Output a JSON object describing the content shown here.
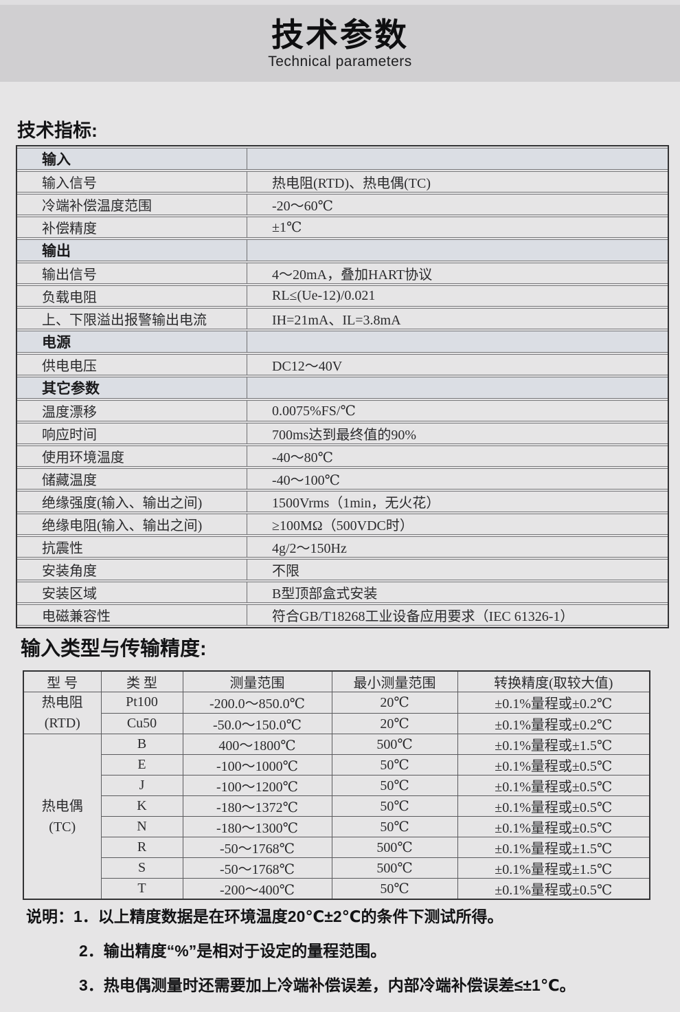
{
  "page": {
    "title": "技术参数",
    "subtitle": "Technical parameters"
  },
  "colors": {
    "page_bg": "#e6e5e6",
    "banner_bg": "#d0cfd1",
    "section_row_bg": "#dbdee4",
    "border_dark": "#323234",
    "border_light": "#77777a",
    "text": "#2b2b2d"
  },
  "tech_specs": {
    "heading": "技术指标:",
    "rows": [
      {
        "kind": "section",
        "label": "输入",
        "value": ""
      },
      {
        "kind": "data",
        "label": "输入信号",
        "value": "热电阻(RTD)、热电偶(TC)"
      },
      {
        "kind": "data",
        "label": "冷端补偿温度范围",
        "value": "-20～60℃"
      },
      {
        "kind": "data",
        "label": "补偿精度",
        "value": "±1℃"
      },
      {
        "kind": "section",
        "label": "输出",
        "value": ""
      },
      {
        "kind": "data",
        "label": "输出信号",
        "value": "4～20mA，叠加HART协议"
      },
      {
        "kind": "data",
        "label": "负载电阻",
        "value": "RL≤(Ue-12)/0.021"
      },
      {
        "kind": "data",
        "label": "上、下限溢出报警输出电流",
        "value": "IH=21mA、IL=3.8mA"
      },
      {
        "kind": "section",
        "label": "电源",
        "value": ""
      },
      {
        "kind": "data",
        "label": "供电电压",
        "value": "DC12～40V"
      },
      {
        "kind": "section",
        "label": "其它参数",
        "value": ""
      },
      {
        "kind": "data",
        "label": "温度漂移",
        "value": "0.0075%FS/℃"
      },
      {
        "kind": "data",
        "label": "响应时间",
        "value": "700ms达到最终值的90%"
      },
      {
        "kind": "data",
        "label": "使用环境温度",
        "value": "-40～80℃"
      },
      {
        "kind": "data",
        "label": "储藏温度",
        "value": "-40～100℃"
      },
      {
        "kind": "data",
        "label": "绝缘强度(输入、输出之间)",
        "value": "1500Vrms（1min，无火花）"
      },
      {
        "kind": "data",
        "label": "绝缘电阻(输入、输出之间)",
        "value": "≥100MΩ（500VDC时）"
      },
      {
        "kind": "data",
        "label": "抗震性",
        "value": "4g/2～150Hz"
      },
      {
        "kind": "data",
        "label": "安装角度",
        "value": "不限"
      },
      {
        "kind": "data",
        "label": "安装区域",
        "value": "B型顶部盒式安装"
      },
      {
        "kind": "data",
        "label": "电磁兼容性",
        "value": "符合GB/T18268工业设备应用要求（IEC 61326-1）"
      }
    ]
  },
  "accuracy": {
    "heading": "输入类型与传输精度:",
    "headers": [
      "型 号",
      "类 型",
      "测量范围",
      "最小测量范围",
      "转换精度(取较大值)"
    ],
    "groups": [
      {
        "name": "热电阻",
        "abbr": "(RTD)",
        "span": 2
      },
      {
        "name": "热电偶",
        "abbr": "(TC)",
        "span": 8
      }
    ],
    "rows": [
      {
        "type": "Pt100",
        "range": "-200.0～850.0℃",
        "min_range": "20℃",
        "accuracy": "±0.1%量程或±0.2℃"
      },
      {
        "type": "Cu50",
        "range": "-50.0～150.0℃",
        "min_range": "20℃",
        "accuracy": "±0.1%量程或±0.2℃"
      },
      {
        "type": "B",
        "range": "400～1800℃",
        "min_range": "500℃",
        "accuracy": "±0.1%量程或±1.5℃"
      },
      {
        "type": "E",
        "range": "-100～1000℃",
        "min_range": "50℃",
        "accuracy": "±0.1%量程或±0.5℃"
      },
      {
        "type": "J",
        "range": "-100～1200℃",
        "min_range": "50℃",
        "accuracy": "±0.1%量程或±0.5℃"
      },
      {
        "type": "K",
        "range": "-180～1372℃",
        "min_range": "50℃",
        "accuracy": "±0.1%量程或±0.5℃"
      },
      {
        "type": "N",
        "range": "-180～1300℃",
        "min_range": "50℃",
        "accuracy": "±0.1%量程或±0.5℃"
      },
      {
        "type": "R",
        "range": "-50～1768℃",
        "min_range": "500℃",
        "accuracy": "±0.1%量程或±1.5℃"
      },
      {
        "type": "S",
        "range": "-50～1768℃",
        "min_range": "500℃",
        "accuracy": "±0.1%量程或±1.5℃"
      },
      {
        "type": "T",
        "range": "-200～400℃",
        "min_range": "50℃",
        "accuracy": "±0.1%量程或±0.5℃"
      }
    ]
  },
  "notes": {
    "label": "说明：",
    "items": [
      "1．以上精度数据是在环境温度20℃±2℃的条件下测试所得。",
      "2．输出精度“%”是相对于设定的量程范围。",
      "3．热电偶测量时还需要加上冷端补偿误差，内部冷端补偿误差≤±1℃。"
    ]
  }
}
